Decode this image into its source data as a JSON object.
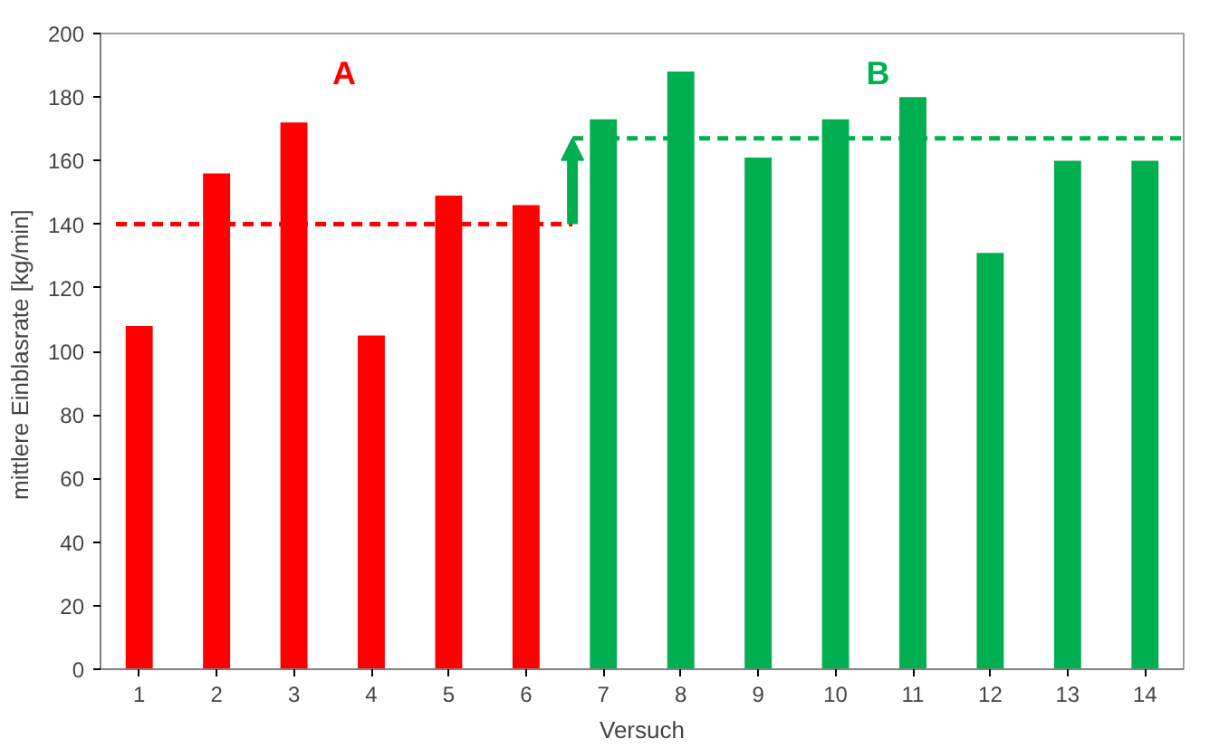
{
  "chart_data": {
    "type": "bar",
    "xlabel": "Versuch",
    "ylabel": "mittlere Einblasrate  [kg/min]",
    "x": [
      1,
      2,
      3,
      4,
      5,
      6,
      7,
      8,
      9,
      10,
      11,
      12,
      13,
      14
    ],
    "values": [
      108,
      156,
      172,
      105,
      149,
      146,
      173,
      188,
      161,
      173,
      180,
      131,
      160,
      160
    ],
    "colors": [
      "#ff0000",
      "#ff0000",
      "#ff0000",
      "#ff0000",
      "#ff0000",
      "#ff0000",
      "#00b050",
      "#00b050",
      "#00b050",
      "#00b050",
      "#00b050",
      "#00b050",
      "#00b050",
      "#00b050"
    ],
    "series": [
      {
        "type": "line",
        "x": [
          0.7,
          6.6
        ],
        "values": [
          140,
          140
        ],
        "color": "#ff0000",
        "line_style": "dashed"
      },
      {
        "type": "line",
        "x": [
          6.6,
          14.5
        ],
        "values": [
          167,
          167
        ],
        "color": "#00b050",
        "line_style": "dashed"
      }
    ],
    "annotations": [
      "A",
      "B"
    ],
    "xlim": [
      0.5,
      14.5
    ],
    "xticks": [
      1,
      2,
      3,
      4,
      5,
      6,
      7,
      8,
      9,
      10,
      11,
      12,
      13,
      14
    ],
    "ylim": [
      0,
      200
    ],
    "yticks": [
      0,
      20,
      40,
      60,
      80,
      100,
      120,
      140,
      160,
      180,
      200
    ],
    "grid": false
  }
}
